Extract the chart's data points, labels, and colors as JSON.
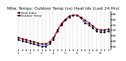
{
  "title": "Milw. Temps: Outdoor Temp (vs) Heat Idx (Last 24 Hrs)",
  "legend": [
    "Outdoor Temp",
    "Heat Index"
  ],
  "line1_color": "#ff0000",
  "line2_color": "#0000cc",
  "dot_color": "#000000",
  "background_color": "#ffffff",
  "x_values": [
    0,
    1,
    2,
    3,
    4,
    5,
    6,
    7,
    8,
    9,
    10,
    11,
    12,
    13,
    14,
    15,
    16,
    17,
    18,
    19,
    20,
    21,
    22,
    23
  ],
  "temp_values": [
    63,
    62,
    61,
    60,
    59,
    58,
    57,
    57,
    59,
    63,
    70,
    76,
    80,
    83,
    84,
    84,
    82,
    79,
    77,
    74,
    71,
    70,
    70,
    71
  ],
  "heat_values": [
    61,
    60,
    59,
    58,
    57,
    56,
    55,
    55,
    57,
    61,
    69,
    75,
    79,
    82,
    84,
    84,
    81,
    77,
    75,
    72,
    69,
    68,
    68,
    69
  ],
  "ylim": [
    52,
    88
  ],
  "ytick_values": [
    55,
    60,
    65,
    70,
    75,
    80,
    85
  ],
  "ytick_labels": [
    "55",
    "60",
    "65",
    "70",
    "75",
    "80",
    "85"
  ],
  "xtick_labels": [
    "1",
    "",
    "",
    "2",
    "",
    "",
    "3",
    "",
    "",
    "4",
    "",
    "",
    "5",
    "",
    "",
    "6",
    "",
    "",
    "7",
    "",
    "",
    "8",
    "",
    ""
  ],
  "grid_color": "#999999",
  "title_fontsize": 4.2,
  "tick_fontsize": 3.2,
  "legend_fontsize": 3.0,
  "linewidth": 0.8,
  "markersize": 1.0
}
